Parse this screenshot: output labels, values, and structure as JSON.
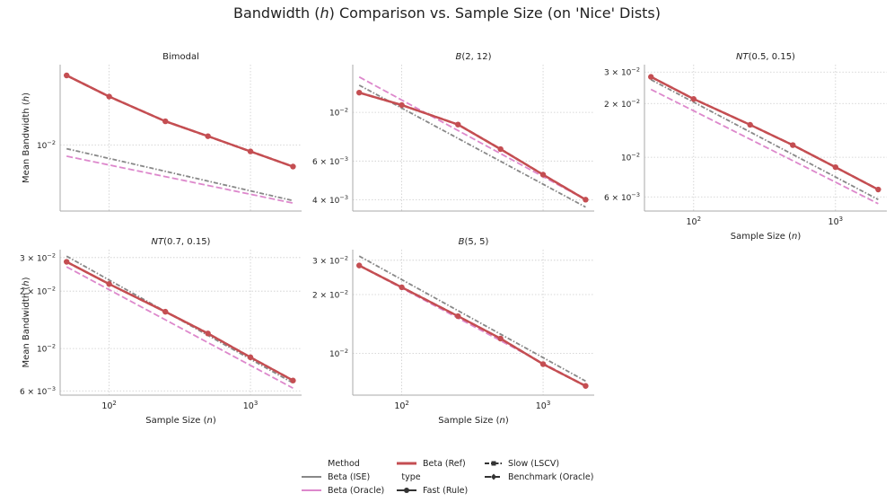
{
  "figure_title": "Bandwidth (h) Comparison vs. Sample Size (on 'Nice' Dists)",
  "colors": {
    "beta_ise": "#888888",
    "beta_oracle": "#dd88cc",
    "beta_ref": "#c44e52",
    "grid": "#cccccc",
    "axis": "#aaaaaa"
  },
  "legend": {
    "method_title": "Method",
    "type_title": "type",
    "items": {
      "beta_ise": "Beta (ISE)",
      "beta_oracle": "Beta (Oracle)",
      "beta_ref": "Beta (Ref)",
      "fast": "Fast (Rule)",
      "slow": "Slow (LSCV)",
      "benchmark": "Benchmark (Oracle)"
    }
  },
  "chart_data": [
    {
      "type": "line",
      "title": "Bimodal",
      "xlabel": "",
      "ylabel": "Mean Bandwidth (h)",
      "xscale": "log",
      "yscale": "log",
      "xlim": [
        45,
        2300
      ],
      "ylim": [
        0.00465,
        0.0255
      ],
      "show_xticklabels": false,
      "yticks": [
        {
          "v": 0.01,
          "base": "10",
          "exp": "−2"
        }
      ],
      "series": [
        {
          "name": "Beta (Ref)",
          "key": "beta_ref",
          "style": "fast",
          "x": [
            50,
            100,
            250,
            500,
            1000,
            2000
          ],
          "y": [
            0.0225,
            0.0176,
            0.0132,
            0.0111,
            0.0093,
            0.0078
          ]
        },
        {
          "name": "Beta (Ref)",
          "key": "beta_ref",
          "style": "benchmark",
          "x": [
            50,
            100,
            250,
            500,
            1000,
            2000
          ],
          "y": [
            0.0225,
            0.0176,
            0.0132,
            0.0111,
            0.0093,
            0.0078
          ]
        },
        {
          "name": "Beta (ISE)",
          "key": "beta_ise",
          "style": "slow",
          "x": [
            50,
            2000
          ],
          "y": [
            0.0096,
            0.00525
          ]
        },
        {
          "name": "Beta (Oracle)",
          "key": "beta_oracle",
          "style": "benchmark",
          "x": [
            50,
            2000
          ],
          "y": [
            0.0088,
            0.0051
          ]
        }
      ]
    },
    {
      "type": "line",
      "title": "B(2, 12)",
      "xlabel": "",
      "ylabel": "",
      "xscale": "log",
      "yscale": "log",
      "xlim": [
        45,
        2300
      ],
      "ylim": [
        0.00355,
        0.0165
      ],
      "show_xticklabels": false,
      "yticks": [
        {
          "v": 0.01,
          "base": "10",
          "exp": "−2"
        },
        {
          "v": 0.006,
          "base": "6 × 10",
          "exp": "−3"
        },
        {
          "v": 0.004,
          "base": "4 × 10",
          "exp": "−3"
        }
      ],
      "series": [
        {
          "name": "Beta (Ref)",
          "key": "beta_ref",
          "style": "fast",
          "x": [
            50,
            100,
            250,
            500,
            1000,
            2000
          ],
          "y": [
            0.0123,
            0.0108,
            0.0088,
            0.0068,
            0.0052,
            0.004
          ]
        },
        {
          "name": "Beta (Ref)",
          "key": "beta_ref",
          "style": "benchmark",
          "x": [
            50,
            100,
            250,
            500,
            1000,
            2000
          ],
          "y": [
            0.0123,
            0.0108,
            0.0088,
            0.0068,
            0.0052,
            0.004
          ]
        },
        {
          "name": "Beta (ISE)",
          "key": "beta_ise",
          "style": "slow",
          "x": [
            50,
            2000
          ],
          "y": [
            0.0133,
            0.0037
          ]
        },
        {
          "name": "Beta (Oracle)",
          "key": "beta_oracle",
          "style": "benchmark",
          "x": [
            50,
            2000
          ],
          "y": [
            0.0145,
            0.004
          ]
        }
      ]
    },
    {
      "type": "line",
      "title": "NT(0.5, 0.15)",
      "xlabel": "Sample Size (n)",
      "ylabel": "",
      "xscale": "log",
      "yscale": "log",
      "xlim": [
        45,
        2300
      ],
      "ylim": [
        0.005,
        0.033
      ],
      "show_xticklabels": true,
      "yticks": [
        {
          "v": 0.03,
          "base": "3 × 10",
          "exp": "−2"
        },
        {
          "v": 0.02,
          "base": "2 × 10",
          "exp": "−2"
        },
        {
          "v": 0.01,
          "base": "10",
          "exp": "−2"
        },
        {
          "v": 0.006,
          "base": "6 × 10",
          "exp": "−3"
        }
      ],
      "series": [
        {
          "name": "Beta (Ref)",
          "key": "beta_ref",
          "style": "fast",
          "x": [
            50,
            100,
            250,
            500,
            1000,
            2000
          ],
          "y": [
            0.0282,
            0.0212,
            0.0152,
            0.0117,
            0.0088,
            0.0066
          ]
        },
        {
          "name": "Beta (Ref)",
          "key": "beta_ref",
          "style": "benchmark",
          "x": [
            50,
            100,
            250,
            500,
            1000,
            2000
          ],
          "y": [
            0.0282,
            0.0212,
            0.0152,
            0.0117,
            0.0088,
            0.0066
          ]
        },
        {
          "name": "Beta (ISE)",
          "key": "beta_ise",
          "style": "slow",
          "x": [
            50,
            2000
          ],
          "y": [
            0.0272,
            0.0058
          ]
        },
        {
          "name": "Beta (Oracle)",
          "key": "beta_oracle",
          "style": "benchmark",
          "x": [
            50,
            2000
          ],
          "y": [
            0.024,
            0.0055
          ]
        }
      ]
    },
    {
      "type": "line",
      "title": "NT(0.7, 0.15)",
      "xlabel": "Sample Size (n)",
      "ylabel": "Mean Bandwidth (h)",
      "xscale": "log",
      "yscale": "log",
      "xlim": [
        45,
        2300
      ],
      "ylim": [
        0.0057,
        0.033
      ],
      "show_xticklabels": true,
      "yticks": [
        {
          "v": 0.03,
          "base": "3 × 10",
          "exp": "−2"
        },
        {
          "v": 0.02,
          "base": "2 × 10",
          "exp": "−2"
        },
        {
          "v": 0.01,
          "base": "10",
          "exp": "−2"
        },
        {
          "v": 0.006,
          "base": "6 × 10",
          "exp": "−3"
        }
      ],
      "series": [
        {
          "name": "Beta (Ref)",
          "key": "beta_ref",
          "style": "fast",
          "x": [
            50,
            100,
            250,
            500,
            1000,
            2000
          ],
          "y": [
            0.0285,
            0.0218,
            0.0156,
            0.012,
            0.009,
            0.0068
          ]
        },
        {
          "name": "Beta (Ref)",
          "key": "beta_ref",
          "style": "benchmark",
          "x": [
            50,
            100,
            250,
            500,
            1000,
            2000
          ],
          "y": [
            0.0285,
            0.0218,
            0.0156,
            0.012,
            0.009,
            0.0068
          ]
        },
        {
          "name": "Beta (ISE)",
          "key": "beta_ise",
          "style": "slow",
          "x": [
            50,
            2000
          ],
          "y": [
            0.0305,
            0.0066
          ]
        },
        {
          "name": "Beta (Oracle)",
          "key": "beta_oracle",
          "style": "benchmark",
          "x": [
            50,
            2000
          ],
          "y": [
            0.0268,
            0.0062
          ]
        }
      ]
    },
    {
      "type": "line",
      "title": "B(5, 5)",
      "xlabel": "Sample Size (n)",
      "ylabel": "",
      "xscale": "log",
      "yscale": "log",
      "xlim": [
        45,
        2300
      ],
      "ylim": [
        0.0061,
        0.034
      ],
      "show_xticklabels": true,
      "yticks": [
        {
          "v": 0.03,
          "base": "3 × 10",
          "exp": "−2"
        },
        {
          "v": 0.02,
          "base": "2 × 10",
          "exp": "−2"
        },
        {
          "v": 0.01,
          "base": "10",
          "exp": "−2"
        }
      ],
      "series": [
        {
          "name": "Beta (Ref)",
          "key": "beta_ref",
          "style": "fast",
          "x": [
            50,
            100,
            250,
            500,
            1000,
            2000
          ],
          "y": [
            0.0282,
            0.0218,
            0.0155,
            0.0119,
            0.0088,
            0.0068
          ]
        },
        {
          "name": "Beta (Ref)",
          "key": "beta_ref",
          "style": "benchmark",
          "x": [
            50,
            100,
            250,
            500,
            1000,
            2000
          ],
          "y": [
            0.0282,
            0.0218,
            0.0155,
            0.0119,
            0.0088,
            0.0068
          ]
        },
        {
          "name": "Beta (ISE)",
          "key": "beta_ise",
          "style": "slow",
          "x": [
            50,
            2000
          ],
          "y": [
            0.0315,
            0.0072
          ]
        },
        {
          "name": "Beta (Oracle)",
          "key": "beta_oracle",
          "style": "benchmark",
          "x": [
            50,
            2000
          ],
          "y": [
            0.0282,
            0.0068
          ]
        }
      ]
    }
  ],
  "xticks": [
    {
      "v": 100,
      "base": "10",
      "exp": "2"
    },
    {
      "v": 1000,
      "base": "10",
      "exp": "3"
    }
  ]
}
